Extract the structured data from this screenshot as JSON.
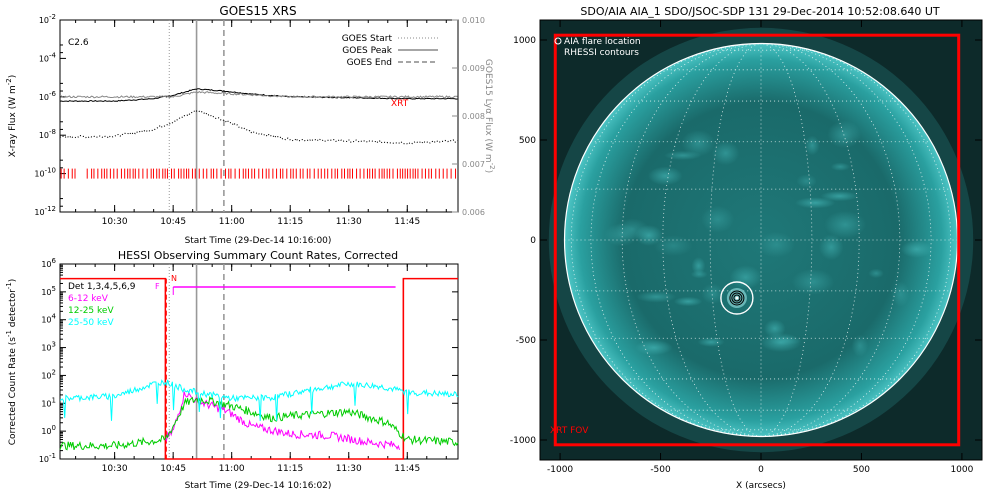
{
  "chart_data": [
    {
      "type": "line",
      "title": "GOES15 XRS",
      "annotation": "C2.6",
      "xlabel": "Start Time (29-Dec-14 10:16:00)",
      "ylabel": "X-ray Flux (W m^-2)",
      "ylabel_right": "GOES15 Lyα Flux (W m^-2)",
      "x_range": [
        "10:16",
        "11:58"
      ],
      "x_ticks": [
        "10:30",
        "10:45",
        "11:00",
        "11:15",
        "11:30",
        "11:45"
      ],
      "y_scale": "log",
      "ylim": [
        1e-12,
        0.01
      ],
      "y_ticks": [
        "10^-12",
        "10^-10",
        "10^-8",
        "10^-6",
        "10^-4",
        "10^-2"
      ],
      "y_right_lim": [
        0.006,
        0.01
      ],
      "y_right_ticks": [
        "0.006",
        "0.007",
        "0.008",
        "0.009",
        "0.010"
      ],
      "legend": [
        {
          "name": "GOES Start",
          "style": "dotted"
        },
        {
          "name": "GOES Peak",
          "style": "solid"
        },
        {
          "name": "GOES End",
          "style": "dashed"
        }
      ],
      "event_lines": [
        {
          "name": "GOES Start",
          "time": "10:44"
        },
        {
          "name": "GOES Peak",
          "time": "10:51"
        },
        {
          "name": "GOES End",
          "time": "10:58"
        }
      ],
      "series": [
        {
          "color": "#000000",
          "x": [
            "10:16",
            "10:30",
            "10:40",
            "10:45",
            "10:51",
            "10:58",
            "11:05",
            "11:15",
            "11:30",
            "11:45",
            "11:58"
          ],
          "y": [
            6e-07,
            6e-07,
            8e-07,
            1.2e-06,
            2.6e-06,
            2e-06,
            1.4e-06,
            1e-06,
            9e-07,
            8e-07,
            8e-07
          ]
        },
        {
          "color": "#000000",
          "style": "dotted",
          "x": [
            "10:16",
            "10:30",
            "10:40",
            "10:45",
            "10:51",
            "10:58",
            "11:05",
            "11:15",
            "11:30",
            "11:45",
            "11:58"
          ],
          "y": [
            8e-09,
            9e-09,
            2e-08,
            5e-08,
            2e-07,
            6e-08,
            1.5e-08,
            6e-09,
            5e-09,
            4e-09,
            5e-09
          ]
        },
        {
          "color": "#888888",
          "axis": "right",
          "x": [
            "10:16",
            "10:45",
            "10:51",
            "11:15",
            "11:58"
          ],
          "y": [
            0.0084,
            0.0084,
            0.0085,
            0.0084,
            0.0084
          ]
        }
      ],
      "xrt_marker": {
        "label": "XRT",
        "color": "#ff0000",
        "level": 1e-10,
        "gaps": [
          [
            "10:20",
            "10:22"
          ]
        ]
      }
    },
    {
      "type": "line",
      "title": "HESSI Observing Summary Count Rates, Corrected",
      "xlabel": "Start Time (29-Dec-14 10:16:02)",
      "ylabel": "Corrected Count Rate (s^-1 detector^-1)",
      "x_range": [
        "10:16",
        "11:58"
      ],
      "x_ticks": [
        "10:30",
        "10:45",
        "11:00",
        "11:15",
        "11:30",
        "11:45"
      ],
      "y_scale": "log",
      "ylim": [
        0.1,
        1000000.0
      ],
      "y_ticks": [
        "10^-1",
        "10^0",
        "10^1",
        "10^2",
        "10^3",
        "10^4",
        "10^5",
        "10^6"
      ],
      "legend_title": "Det 1,3,4,5,6,9",
      "flags": [
        {
          "label": "N",
          "time": "10:44"
        },
        {
          "label": "F",
          "time": "10:44"
        }
      ],
      "event_lines": [
        {
          "name": "start",
          "time": "10:44"
        },
        {
          "name": "peak",
          "time": "10:51"
        },
        {
          "name": "end",
          "time": "10:58"
        }
      ],
      "series": [
        {
          "name": "6-12 keV",
          "color": "#ff00ff",
          "x": [
            "10:43",
            "10:45",
            "10:48",
            "10:51",
            "10:55",
            "10:59",
            "11:05",
            "11:15",
            "11:25",
            "11:35",
            "11:43"
          ],
          "y": [
            0.5,
            1.0,
            25,
            12,
            8,
            5,
            1.5,
            0.8,
            0.7,
            0.4,
            0.3
          ]
        },
        {
          "name": "12-25 keV",
          "color": "#00cc00",
          "x": [
            "10:16",
            "10:30",
            "10:43",
            "10:45",
            "10:48",
            "10:51",
            "10:55",
            "11:00",
            "11:10",
            "11:20",
            "11:30",
            "11:40",
            "11:45",
            "11:58"
          ],
          "y": [
            0.3,
            0.3,
            0.5,
            1.5,
            10,
            14,
            12,
            8,
            3,
            4,
            5,
            2,
            0.5,
            0.4
          ]
        },
        {
          "name": "25-50 keV",
          "color": "#00ffff",
          "x": [
            "10:16",
            "10:30",
            "10:40",
            "10:43",
            "10:47",
            "10:51",
            "11:00",
            "11:10",
            "11:20",
            "11:30",
            "11:38",
            "11:45",
            "11:58"
          ],
          "y": [
            15,
            18,
            50,
            60,
            35,
            25,
            15,
            16,
            30,
            50,
            40,
            25,
            20
          ]
        }
      ],
      "attenuator_state": {
        "color": "#ff0000",
        "high_level": 300000.0,
        "windows": [
          [
            "10:43",
            "11:44"
          ]
        ]
      },
      "magenta_band": {
        "level": 150000.0,
        "from": "10:44",
        "to": "11:42"
      }
    },
    {
      "type": "image",
      "title": "SDO/AIA AIA_1 SDO/JSOC-SDP 131 29-Dec-2014 10:52:08.640 UT",
      "xlabel": "X (arcsecs)",
      "xlim": [
        -1100,
        1100
      ],
      "ylim": [
        -1100,
        1100
      ],
      "x_ticks": [
        "-1000",
        "-500",
        "0",
        "500",
        "1000"
      ],
      "y_ticks": [
        "-1000",
        "-500",
        "0",
        "500",
        "1000"
      ],
      "legend": [
        "AIA flare location",
        "RHESSI contours"
      ],
      "fov_label": "XRT FOV",
      "fov_color": "#ff0000",
      "fov_x": [
        -1024,
        984
      ],
      "fov_y": [
        -1024,
        1024
      ],
      "solar_radius_arcsec": 978,
      "flare_location": {
        "x": -120,
        "y": -290
      }
    }
  ]
}
